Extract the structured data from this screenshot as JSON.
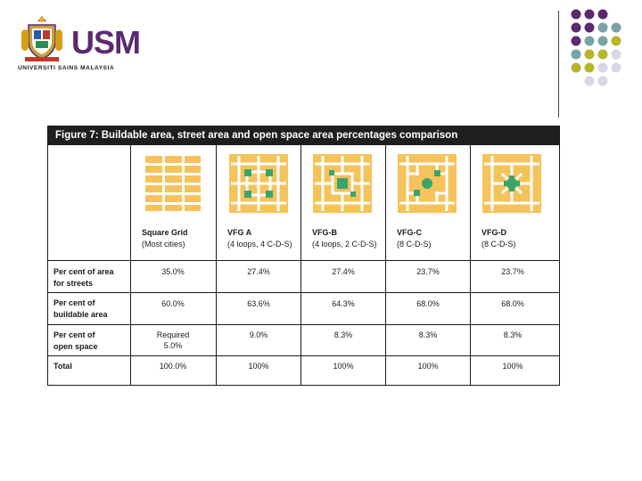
{
  "logo": {
    "brand": "USM",
    "university": "UNIVERSITI SAINS MALAYSIA"
  },
  "colors": {
    "purple": "#5b2a6e",
    "teal": "#7aa3a6",
    "olive": "#b8b52a",
    "lavender": "#d9d6e6",
    "block_yellow": "#f5c35c",
    "street_green": "#3aa56b"
  },
  "figure": {
    "title": "Figure 7: Buildable area, street area and open space area percentages comparison",
    "columns": [
      {
        "name": "Square Grid",
        "sub": "(Most cities)",
        "icon": "square-grid-plan"
      },
      {
        "name": "VFG A",
        "sub": "(4 loops, 4 C-D-S)",
        "icon": "vfg-a-plan"
      },
      {
        "name": "VFG-B",
        "sub": "(4 loops, 2 C-D-S)",
        "icon": "vfg-b-plan"
      },
      {
        "name": "VFG-C",
        "sub": "(8 C-D-S)",
        "icon": "vfg-c-plan"
      },
      {
        "name": "VFG-D",
        "sub": "(8 C-D-S)",
        "icon": "vfg-d-plan"
      }
    ],
    "rows": [
      {
        "label_1": "Per cent of area",
        "label_2": "for streets",
        "values": [
          "35.0%",
          "27.4%",
          "27.4%",
          "23.7%",
          "23.7%"
        ]
      },
      {
        "label_1": "Per cent of",
        "label_2": "buildable area",
        "values": [
          "60.0%",
          "63.6%",
          "64.3%",
          "68.0%",
          "68.0%"
        ]
      },
      {
        "label_1": "Per cent of",
        "label_2": "open space",
        "values": [
          "Required",
          "9.0%",
          "8.3%",
          "8.3%",
          "8.3%"
        ],
        "value_0_line2": "5.0%"
      },
      {
        "label_1": "Total",
        "label_2": "",
        "values": [
          "100.0%",
          "100%",
          "100%",
          "100%",
          "100%"
        ]
      }
    ]
  }
}
